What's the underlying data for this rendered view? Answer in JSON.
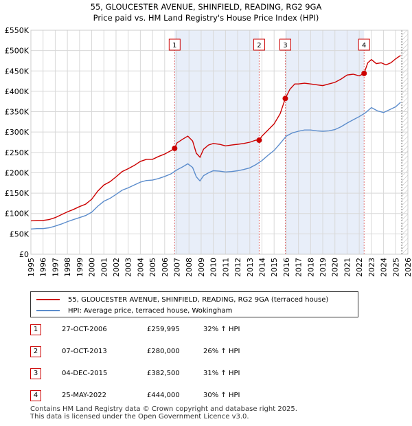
{
  "chart_data": {
    "type": "line",
    "title": "55, GLOUCESTER AVENUE, SHINFIELD, READING, RG2 9GA",
    "subtitle": "Price paid vs. HM Land Registry's House Price Index (HPI)",
    "xlim": [
      1995,
      2026
    ],
    "ylim": [
      0,
      550000
    ],
    "yticks": [
      0,
      50000,
      100000,
      150000,
      200000,
      250000,
      300000,
      350000,
      400000,
      450000,
      500000,
      550000
    ],
    "ytick_labels": [
      "£0",
      "£50K",
      "£100K",
      "£150K",
      "£200K",
      "£250K",
      "£300K",
      "£350K",
      "£400K",
      "£450K",
      "£500K",
      "£550K"
    ],
    "xticks": [
      1995,
      1996,
      1997,
      1998,
      1999,
      2000,
      2001,
      2002,
      2003,
      2004,
      2005,
      2006,
      2007,
      2008,
      2009,
      2010,
      2011,
      2012,
      2013,
      2014,
      2015,
      2016,
      2017,
      2018,
      2019,
      2020,
      2021,
      2022,
      2023,
      2024,
      2025,
      2026
    ],
    "shaded_ranges": [
      [
        2006.82,
        2013.77
      ],
      [
        2015.92,
        2022.4
      ]
    ],
    "hatched_from": 2025.5,
    "colors": {
      "property": "#cc0000",
      "hpi": "#5b8ccc",
      "shade": "#e8eef9",
      "grid": "#d8d8d8",
      "dashed": "#e07070"
    },
    "series": [
      {
        "name": "55, GLOUCESTER AVENUE, SHINFIELD, READING, RG2 9GA (terraced house)",
        "color": "#cc0000",
        "x": [
          1995,
          1995.5,
          1996,
          1996.5,
          1997,
          1997.5,
          1998,
          1998.5,
          1999,
          1999.5,
          2000,
          2000.5,
          2001,
          2001.5,
          2002,
          2002.5,
          2003,
          2003.5,
          2004,
          2004.5,
          2005,
          2005.5,
          2006,
          2006.5,
          2006.82,
          2007,
          2007.5,
          2007.9,
          2008.3,
          2008.6,
          2008.9,
          2009.2,
          2009.6,
          2010,
          2010.5,
          2011,
          2011.5,
          2012,
          2012.5,
          2013,
          2013.5,
          2013.77,
          2014,
          2014.5,
          2015,
          2015.5,
          2015.92,
          2016.3,
          2016.7,
          2017,
          2017.5,
          2018,
          2018.5,
          2019,
          2019.5,
          2020,
          2020.5,
          2021,
          2021.5,
          2022,
          2022.4,
          2022.7,
          2023,
          2023.4,
          2023.8,
          2024.2,
          2024.6,
          2025,
          2025.4
        ],
        "values": [
          82000,
          83000,
          83000,
          85000,
          90000,
          97000,
          104000,
          110000,
          117000,
          123000,
          135000,
          155000,
          170000,
          178000,
          190000,
          203000,
          210000,
          218000,
          228000,
          233000,
          233000,
          240000,
          246000,
          254000,
          259995,
          273000,
          283000,
          290000,
          278000,
          248000,
          238000,
          258000,
          268000,
          272000,
          270000,
          266000,
          268000,
          270000,
          272000,
          275000,
          280000,
          280000,
          290000,
          305000,
          320000,
          345000,
          382500,
          405000,
          418000,
          418000,
          420000,
          418000,
          416000,
          414000,
          418000,
          422000,
          430000,
          440000,
          442000,
          438000,
          444000,
          470000,
          478000,
          468000,
          470000,
          465000,
          470000,
          480000,
          488000
        ]
      },
      {
        "name": "HPI: Average price, terraced house, Wokingham",
        "color": "#5b8ccc",
        "x": [
          1995,
          1995.5,
          1996,
          1996.5,
          1997,
          1997.5,
          1998,
          1998.5,
          1999,
          1999.5,
          2000,
          2000.5,
          2001,
          2001.5,
          2002,
          2002.5,
          2003,
          2003.5,
          2004,
          2004.5,
          2005,
          2005.5,
          2006,
          2006.5,
          2007,
          2007.5,
          2007.9,
          2008.3,
          2008.6,
          2008.9,
          2009.2,
          2009.6,
          2010,
          2010.5,
          2011,
          2011.5,
          2012,
          2012.5,
          2013,
          2013.5,
          2014,
          2014.5,
          2015,
          2015.5,
          2016,
          2016.5,
          2017,
          2017.5,
          2018,
          2018.5,
          2019,
          2019.5,
          2020,
          2020.5,
          2021,
          2021.5,
          2022,
          2022.5,
          2023,
          2023.5,
          2024,
          2024.5,
          2025,
          2025.4
        ],
        "values": [
          62000,
          63000,
          63000,
          65000,
          69000,
          74000,
          80000,
          85000,
          90000,
          95000,
          103000,
          118000,
          130000,
          137000,
          147000,
          157000,
          163000,
          170000,
          177000,
          181000,
          182000,
          186000,
          191000,
          197000,
          207000,
          215000,
          222000,
          213000,
          190000,
          180000,
          193000,
          200000,
          205000,
          204000,
          202000,
          203000,
          205000,
          208000,
          212000,
          220000,
          230000,
          243000,
          255000,
          272000,
          290000,
          298000,
          302000,
          305000,
          305000,
          303000,
          302000,
          303000,
          306000,
          313000,
          322000,
          330000,
          338000,
          347000,
          360000,
          352000,
          348000,
          355000,
          362000,
          373000
        ]
      }
    ],
    "sales": [
      {
        "label": "1",
        "x": 2006.82,
        "value": 259995
      },
      {
        "label": "2",
        "x": 2013.77,
        "value": 280000
      },
      {
        "label": "3",
        "x": 2015.92,
        "value": 382500
      },
      {
        "label": "4",
        "x": 2022.4,
        "value": 444000
      }
    ]
  },
  "legend": {
    "property_label": "55, GLOUCESTER AVENUE, SHINFIELD, READING, RG2 9GA (terraced house)",
    "hpi_label": "HPI: Average price, terraced house, Wokingham"
  },
  "sales_table": [
    {
      "num": "1",
      "date": "27-OCT-2006",
      "price": "£259,995",
      "hpi": "32% ↑ HPI"
    },
    {
      "num": "2",
      "date": "07-OCT-2013",
      "price": "£280,000",
      "hpi": "26% ↑ HPI"
    },
    {
      "num": "3",
      "date": "04-DEC-2015",
      "price": "£382,500",
      "hpi": "31% ↑ HPI"
    },
    {
      "num": "4",
      "date": "25-MAY-2022",
      "price": "£444,000",
      "hpi": "30% ↑ HPI"
    }
  ],
  "footer": {
    "line1": "Contains HM Land Registry data © Crown copyright and database right 2025.",
    "line2": "This data is licensed under the Open Government Licence v3.0."
  }
}
